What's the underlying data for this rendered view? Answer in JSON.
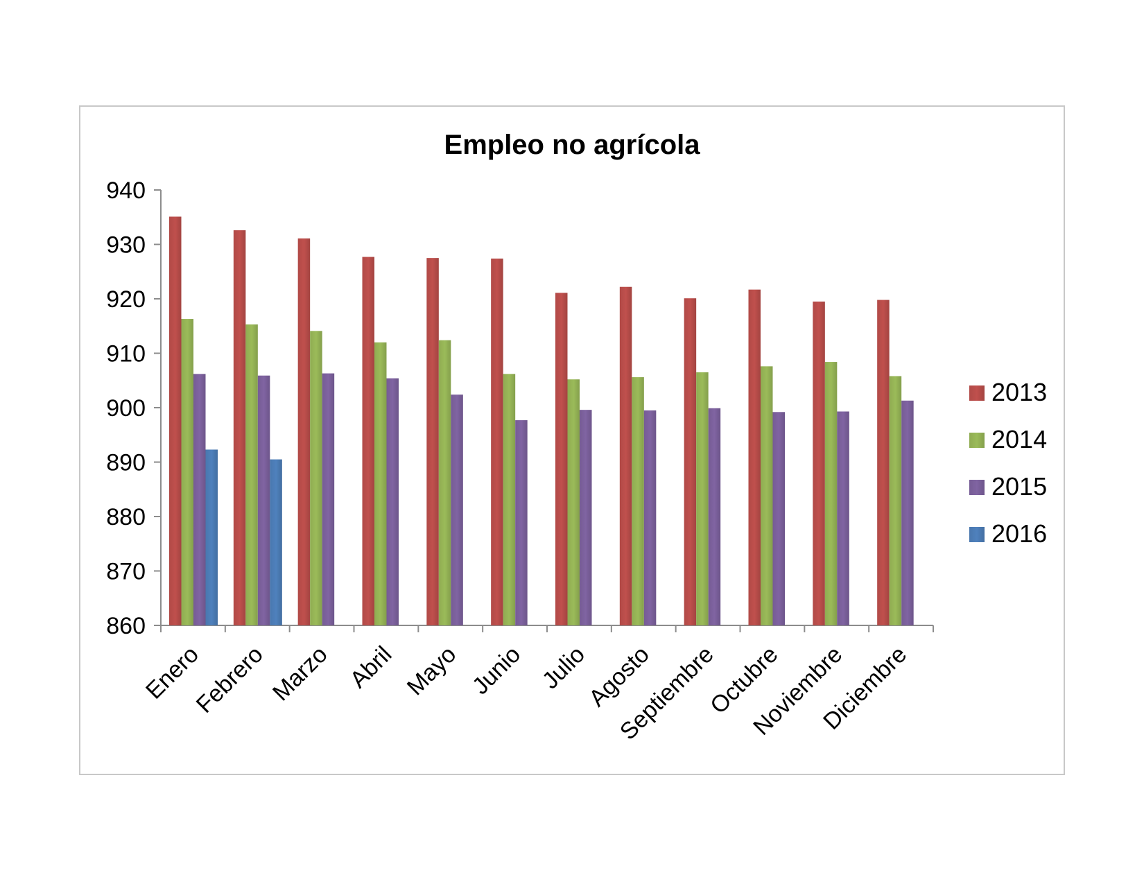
{
  "chart_data": {
    "type": "bar",
    "title": "Empleo no agrícola",
    "xlabel": "",
    "ylabel": "",
    "ylim": [
      860,
      940
    ],
    "yticks": [
      860,
      870,
      880,
      890,
      900,
      910,
      920,
      930,
      940
    ],
    "grid": false,
    "legend_position": "right",
    "categories": [
      "Enero",
      "Febrero",
      "Marzo",
      "Abril",
      "Mayo",
      "Junio",
      "Julio",
      "Agosto",
      "Septiembre",
      "Octubre",
      "Noviembre",
      "Diciembre"
    ],
    "series": [
      {
        "name": "2013",
        "color": "#c0504d",
        "values": [
          935.1,
          932.6,
          931.1,
          927.7,
          927.5,
          927.4,
          921.1,
          922.2,
          920.1,
          921.7,
          919.5,
          919.8
        ]
      },
      {
        "name": "2014",
        "color": "#9bbb59",
        "values": [
          916.3,
          915.3,
          914.1,
          912.0,
          912.4,
          906.2,
          905.2,
          905.6,
          906.5,
          907.6,
          908.4,
          905.8
        ]
      },
      {
        "name": "2015",
        "color": "#8064a2",
        "values": [
          906.2,
          905.9,
          906.3,
          905.4,
          902.4,
          897.7,
          899.6,
          899.5,
          899.9,
          899.2,
          899.3,
          901.3
        ]
      },
      {
        "name": "2016",
        "color": "#4f81bd",
        "values": [
          892.3,
          890.5,
          null,
          null,
          null,
          null,
          null,
          null,
          null,
          null,
          null,
          null
        ]
      }
    ]
  }
}
